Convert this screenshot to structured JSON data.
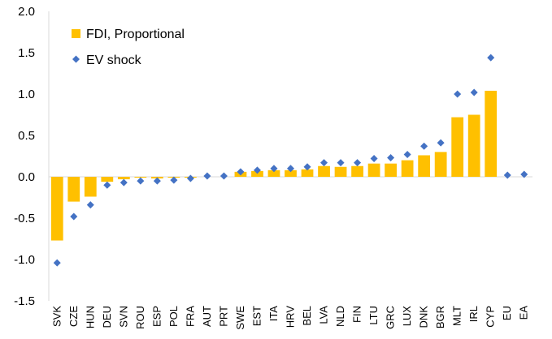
{
  "chart_data": {
    "type": "bar",
    "categories": [
      "SVK",
      "CZE",
      "HUN",
      "DEU",
      "SVN",
      "ROU",
      "ESP",
      "POL",
      "FRA",
      "AUT",
      "PRT",
      "SWE",
      "EST",
      "ITA",
      "HRV",
      "BEL",
      "LVA",
      "NLD",
      "FIN",
      "LTU",
      "GRC",
      "LUX",
      "DNK",
      "BGR",
      "MLT",
      "IRL",
      "CYP",
      "EU",
      "EA"
    ],
    "series": [
      {
        "name": "FDI, Proportional",
        "type": "bar",
        "color": "#FFC000",
        "values": [
          -0.77,
          -0.3,
          -0.24,
          -0.06,
          -0.03,
          -0.01,
          -0.02,
          -0.01,
          -0.01,
          0.0,
          0.0,
          0.06,
          0.07,
          0.08,
          0.08,
          0.09,
          0.13,
          0.12,
          0.13,
          0.16,
          0.16,
          0.2,
          0.26,
          0.3,
          0.72,
          0.75,
          1.04,
          0.0,
          0.0
        ]
      },
      {
        "name": "EV shock",
        "type": "scatter",
        "marker": "diamond",
        "color": "#4472C4",
        "values": [
          -1.04,
          -0.48,
          -0.34,
          -0.1,
          -0.07,
          -0.05,
          -0.05,
          -0.04,
          -0.02,
          0.01,
          0.01,
          0.06,
          0.08,
          0.1,
          0.1,
          0.12,
          0.17,
          0.17,
          0.17,
          0.22,
          0.23,
          0.27,
          0.37,
          0.41,
          1.0,
          1.02,
          1.44,
          0.02,
          0.03
        ]
      }
    ],
    "ylim": [
      -1.5,
      2.0
    ],
    "yticks": [
      "2.0",
      "1.5",
      "1.0",
      "0.5",
      "0.0",
      "-0.5",
      "-1.0",
      "-1.5"
    ],
    "ytick_values": [
      2.0,
      1.5,
      1.0,
      0.5,
      0.0,
      -0.5,
      -1.0,
      -1.5
    ],
    "legend_position": "top-left",
    "grid": false,
    "title": "",
    "xlabel": "",
    "ylabel": ""
  }
}
